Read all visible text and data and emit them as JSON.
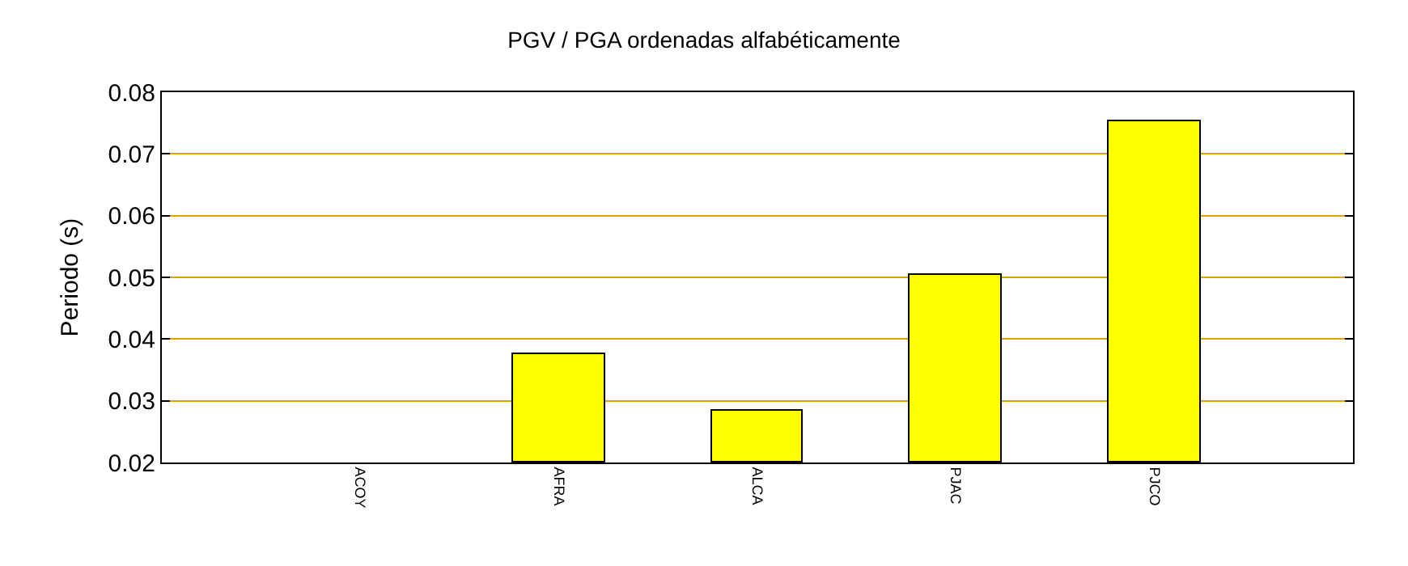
{
  "chart_data": {
    "type": "bar",
    "title": "PGV / PGA ordenadas alfabéticamente",
    "ylabel": "Periodo (s)",
    "categories": [
      "ACOY",
      "AFRA",
      "ALCA",
      "PJAC",
      "PJCO"
    ],
    "values": [
      null,
      0.0376,
      0.0284,
      0.0503,
      0.0753
    ],
    "color": "#ffff00",
    "ylim": [
      0.02,
      0.08
    ],
    "yticks": [
      0.02,
      0.03,
      0.04,
      0.05,
      0.06,
      0.07,
      0.08
    ],
    "grid": "y",
    "legend": false
  }
}
